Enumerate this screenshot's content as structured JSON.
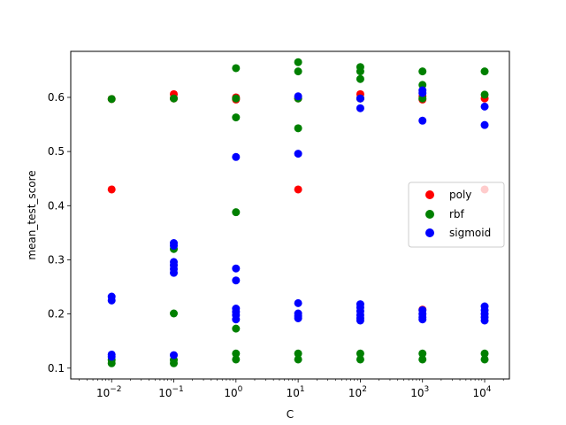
{
  "chart_data": {
    "type": "scatter",
    "title": "",
    "xlabel": "C",
    "ylabel": "mean_test_score",
    "xscale": "log",
    "xlim": [
      0.0022,
      25000
    ],
    "ylim": [
      0.08,
      0.685
    ],
    "grid": false,
    "legend_position": "center-right",
    "x_ticks": [
      {
        "value": 0.01,
        "base": "10",
        "exp": "−2"
      },
      {
        "value": 0.1,
        "base": "10",
        "exp": "−1"
      },
      {
        "value": 1,
        "base": "10",
        "exp": "0"
      },
      {
        "value": 10,
        "base": "10",
        "exp": "1"
      },
      {
        "value": 100,
        "base": "10",
        "exp": "2"
      },
      {
        "value": 1000,
        "base": "10",
        "exp": "3"
      },
      {
        "value": 10000,
        "base": "10",
        "exp": "4"
      }
    ],
    "y_ticks": [
      {
        "value": 0.1,
        "label": "0.1"
      },
      {
        "value": 0.2,
        "label": "0.2"
      },
      {
        "value": 0.3,
        "label": "0.3"
      },
      {
        "value": 0.4,
        "label": "0.4"
      },
      {
        "value": 0.5,
        "label": "0.5"
      },
      {
        "value": 0.6,
        "label": "0.6"
      }
    ],
    "series": [
      {
        "name": "poly",
        "color": "#ff0000",
        "points": [
          [
            0.01,
            0.597
          ],
          [
            0.01,
            0.43
          ],
          [
            0.1,
            0.606
          ],
          [
            0.1,
            0.598
          ],
          [
            1,
            0.6
          ],
          [
            1,
            0.596
          ],
          [
            10,
            0.598
          ],
          [
            10,
            0.43
          ],
          [
            100,
            0.606
          ],
          [
            100,
            0.598
          ],
          [
            1000,
            0.602
          ],
          [
            1000,
            0.596
          ],
          [
            1000,
            0.208
          ],
          [
            10000,
            0.598
          ],
          [
            10000,
            0.43
          ]
        ]
      },
      {
        "name": "rbf",
        "color": "#008000",
        "points": [
          [
            0.01,
            0.597
          ],
          [
            0.01,
            0.115
          ],
          [
            0.01,
            0.109
          ],
          [
            0.1,
            0.598
          ],
          [
            0.1,
            0.32
          ],
          [
            0.1,
            0.201
          ],
          [
            0.1,
            0.115
          ],
          [
            0.1,
            0.109
          ],
          [
            1,
            0.654
          ],
          [
            1,
            0.598
          ],
          [
            1,
            0.563
          ],
          [
            1,
            0.388
          ],
          [
            1,
            0.173
          ],
          [
            1,
            0.127
          ],
          [
            1,
            0.116
          ],
          [
            10,
            0.665
          ],
          [
            10,
            0.648
          ],
          [
            10,
            0.598
          ],
          [
            10,
            0.543
          ],
          [
            10,
            0.127
          ],
          [
            10,
            0.116
          ],
          [
            100,
            0.656
          ],
          [
            100,
            0.648
          ],
          [
            100,
            0.634
          ],
          [
            100,
            0.598
          ],
          [
            100,
            0.127
          ],
          [
            100,
            0.116
          ],
          [
            1000,
            0.648
          ],
          [
            1000,
            0.623
          ],
          [
            1000,
            0.598
          ],
          [
            1000,
            0.127
          ],
          [
            1000,
            0.116
          ],
          [
            10000,
            0.648
          ],
          [
            10000,
            0.605
          ],
          [
            10000,
            0.127
          ],
          [
            10000,
            0.116
          ]
        ]
      },
      {
        "name": "sigmoid",
        "color": "#0000ff",
        "points": [
          [
            0.01,
            0.232
          ],
          [
            0.01,
            0.225
          ],
          [
            0.01,
            0.125
          ],
          [
            0.01,
            0.121
          ],
          [
            0.1,
            0.331
          ],
          [
            0.1,
            0.326
          ],
          [
            0.1,
            0.296
          ],
          [
            0.1,
            0.29
          ],
          [
            0.1,
            0.283
          ],
          [
            0.1,
            0.276
          ],
          [
            0.1,
            0.124
          ],
          [
            1,
            0.49
          ],
          [
            1,
            0.284
          ],
          [
            1,
            0.262
          ],
          [
            1,
            0.21
          ],
          [
            1,
            0.204
          ],
          [
            1,
            0.198
          ],
          [
            1,
            0.19
          ],
          [
            10,
            0.602
          ],
          [
            10,
            0.496
          ],
          [
            10,
            0.22
          ],
          [
            10,
            0.201
          ],
          [
            10,
            0.196
          ],
          [
            10,
            0.192
          ],
          [
            100,
            0.598
          ],
          [
            100,
            0.58
          ],
          [
            100,
            0.218
          ],
          [
            100,
            0.212
          ],
          [
            100,
            0.205
          ],
          [
            100,
            0.198
          ],
          [
            100,
            0.192
          ],
          [
            100,
            0.188
          ],
          [
            1000,
            0.613
          ],
          [
            1000,
            0.608
          ],
          [
            1000,
            0.557
          ],
          [
            1000,
            0.207
          ],
          [
            1000,
            0.2
          ],
          [
            1000,
            0.194
          ],
          [
            1000,
            0.19
          ],
          [
            10000,
            0.583
          ],
          [
            10000,
            0.549
          ],
          [
            10000,
            0.214
          ],
          [
            10000,
            0.207
          ],
          [
            10000,
            0.2
          ],
          [
            10000,
            0.194
          ],
          [
            10000,
            0.188
          ]
        ]
      }
    ]
  }
}
